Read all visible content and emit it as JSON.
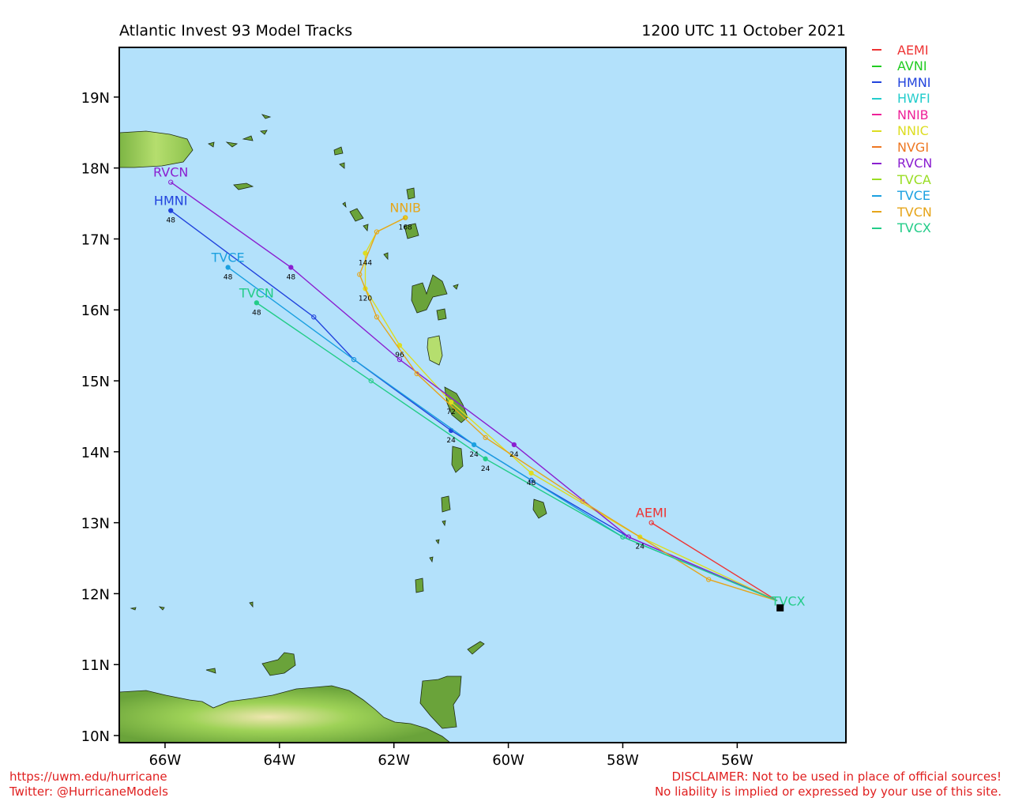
{
  "header": {
    "title": "Atlantic Invest 93 Model Tracks",
    "timestamp": "1200 UTC 11 October 2021"
  },
  "footer": {
    "url": "https://uwm.edu/hurricane",
    "twitter": "Twitter: @HurricaneModels",
    "disclaimer_1": "DISCLAIMER: Not to be used in place of official sources!",
    "disclaimer_2": "No liability is implied or expressed by your use of this site."
  },
  "map": {
    "lon_range": [
      -66.8,
      -54.1
    ],
    "lat_range": [
      9.9,
      19.7
    ],
    "lon_ticks": [
      {
        "value": -66,
        "label": "66W"
      },
      {
        "value": -64,
        "label": "64W"
      },
      {
        "value": -62,
        "label": "62W"
      },
      {
        "value": -60,
        "label": "60W"
      },
      {
        "value": -58,
        "label": "58W"
      },
      {
        "value": -56,
        "label": "56W"
      }
    ],
    "lat_ticks": [
      {
        "value": 10,
        "label": "10N"
      },
      {
        "value": 11,
        "label": "11N"
      },
      {
        "value": 12,
        "label": "12N"
      },
      {
        "value": 13,
        "label": "13N"
      },
      {
        "value": 14,
        "label": "14N"
      },
      {
        "value": 15,
        "label": "15N"
      },
      {
        "value": 16,
        "label": "16N"
      },
      {
        "value": 17,
        "label": "17N"
      },
      {
        "value": 18,
        "label": "18N"
      },
      {
        "value": 19,
        "label": "19N"
      }
    ],
    "colors": {
      "ocean": "#b3e1fb",
      "land": "#6aa33a",
      "land_light": "#9ed257",
      "land_pale": "#efe6b0"
    },
    "current_position": {
      "lon": -55.25,
      "lat": 11.8
    }
  },
  "chart_data": {
    "type": "map-tracks",
    "legend_placement": "right",
    "models": [
      {
        "name": "AEMI",
        "color": "#ee3333",
        "track": [
          [
            -55.3,
            11.9
          ],
          [
            -57.5,
            13.0
          ]
        ],
        "end_label": "AEMI",
        "hours": []
      },
      {
        "name": "AVNI",
        "color": "#22cc22",
        "track": [],
        "end_label": "",
        "hours": []
      },
      {
        "name": "HMNI",
        "color": "#2244dd",
        "track": [
          [
            -55.3,
            11.9
          ],
          [
            -57.9,
            12.8
          ],
          [
            -59.6,
            13.6
          ],
          [
            -61.0,
            14.3
          ],
          [
            -62.7,
            15.3
          ],
          [
            -63.4,
            15.9
          ],
          [
            -65.9,
            17.4
          ]
        ],
        "end_label": "HMNI",
        "hours": [
          {
            "lon": -61.0,
            "lat": 14.3,
            "label": "24"
          },
          {
            "lon": -65.9,
            "lat": 17.4,
            "label": "48"
          }
        ]
      },
      {
        "name": "HWFI",
        "color": "#22cccc",
        "track": [],
        "end_label": "",
        "hours": []
      },
      {
        "name": "NNIB",
        "color": "#ee2299",
        "track": [],
        "end_label": "",
        "hours": []
      },
      {
        "name": "NNIC",
        "color": "#dddd22",
        "track": [
          [
            -55.3,
            11.9
          ],
          [
            -57.7,
            12.8
          ],
          [
            -59.6,
            13.7
          ],
          [
            -61.0,
            14.7
          ],
          [
            -61.9,
            15.5
          ],
          [
            -62.5,
            16.3
          ],
          [
            -62.5,
            16.8
          ],
          [
            -62.3,
            17.1
          ],
          [
            -61.8,
            17.3
          ]
        ],
        "end_label": "",
        "hours": [
          {
            "lon": -57.7,
            "lat": 12.8,
            "label": "24"
          },
          {
            "lon": -59.6,
            "lat": 13.7,
            "label": "48"
          },
          {
            "lon": -61.0,
            "lat": 14.7,
            "label": "72"
          },
          {
            "lon": -61.9,
            "lat": 15.5,
            "label": "96"
          },
          {
            "lon": -62.5,
            "lat": 16.3,
            "label": "120"
          },
          {
            "lon": -62.5,
            "lat": 16.8,
            "label": "144"
          },
          {
            "lon": -61.8,
            "lat": 17.3,
            "label": "168"
          }
        ]
      },
      {
        "name": "NVGI",
        "color": "#ee7722",
        "track": [],
        "end_label": "",
        "hours": []
      },
      {
        "name": "RVCN",
        "color": "#8a1fd0",
        "track": [
          [
            -55.3,
            11.9
          ],
          [
            -57.9,
            12.8
          ],
          [
            -59.9,
            14.1
          ],
          [
            -61.9,
            15.3
          ],
          [
            -63.8,
            16.6
          ],
          [
            -65.9,
            17.8
          ]
        ],
        "end_label": "RVCN",
        "hours": [
          {
            "lon": -59.9,
            "lat": 14.1,
            "label": "24"
          },
          {
            "lon": -63.8,
            "lat": 16.6,
            "label": "48"
          }
        ]
      },
      {
        "name": "TVCA",
        "color": "#99dd22",
        "track": [],
        "end_label": "",
        "hours": []
      },
      {
        "name": "TVCE",
        "color": "#1ba0e0",
        "track": [
          [
            -55.3,
            11.9
          ],
          [
            -58.0,
            12.8
          ],
          [
            -60.6,
            14.1
          ],
          [
            -62.7,
            15.3
          ],
          [
            -64.9,
            16.6
          ]
        ],
        "end_label": "TVCE",
        "hours": [
          {
            "lon": -60.6,
            "lat": 14.1,
            "label": "24"
          },
          {
            "lon": -64.9,
            "lat": 16.6,
            "label": "48"
          }
        ]
      },
      {
        "name": "TVCN",
        "color": "#e6a51a",
        "track": [
          [
            -55.3,
            11.9
          ],
          [
            -56.5,
            12.2
          ],
          [
            -58.7,
            13.3
          ],
          [
            -60.4,
            14.2
          ],
          [
            -61.6,
            15.1
          ],
          [
            -62.3,
            15.9
          ],
          [
            -62.6,
            16.5
          ],
          [
            -62.3,
            17.1
          ],
          [
            -61.8,
            17.3
          ]
        ],
        "end_label": "NNIB",
        "hours": []
      },
      {
        "name": "TVCX",
        "color": "#22cc88",
        "track": [
          [
            -55.3,
            11.9
          ],
          [
            -58.0,
            12.8
          ],
          [
            -60.4,
            13.9
          ],
          [
            -62.4,
            15.0
          ],
          [
            -64.4,
            16.1
          ]
        ],
        "end_label": "TVCN",
        "hours": [
          {
            "lon": -60.4,
            "lat": 13.9,
            "label": "24"
          },
          {
            "lon": -64.4,
            "lat": 16.1,
            "label": "48"
          }
        ]
      }
    ],
    "start_labels": "TVCX"
  }
}
